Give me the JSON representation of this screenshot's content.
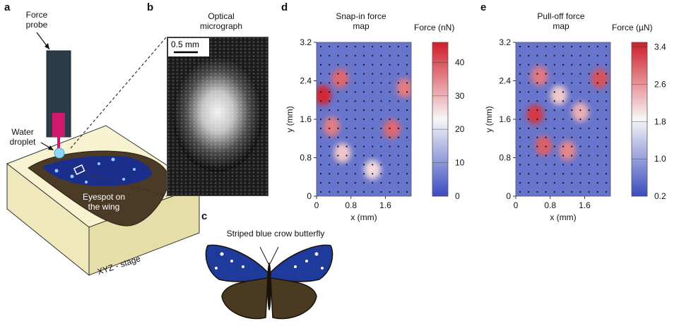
{
  "panels": {
    "a": {
      "letter": "a",
      "force_probe": [
        "Force",
        "probe"
      ],
      "water_droplet": [
        "Water",
        "droplet"
      ],
      "eyespot": [
        "Eyespot on",
        "the wing"
      ],
      "stage": "XYZ - stage"
    },
    "b": {
      "letter": "b",
      "title": [
        "Optical",
        "micrograph"
      ],
      "scalebar": "0.5 mm"
    },
    "c": {
      "letter": "c",
      "title": "Striped blue crow butterfly"
    },
    "d": {
      "letter": "d",
      "title": [
        "Snap-in force",
        "map"
      ],
      "colorbar_label": "Force (nN)",
      "colorbar_ticks": [
        "40",
        "30",
        "20",
        "10",
        "0"
      ],
      "colorbar_range": [
        0,
        46
      ]
    },
    "e": {
      "letter": "e",
      "title": [
        "Pull-off force",
        "map"
      ],
      "colorbar_label": "Force (µN)",
      "colorbar_ticks": [
        "3.4",
        "2.6",
        "1.8",
        "1.0",
        "0.2"
      ],
      "colorbar_range": [
        0.2,
        3.5
      ]
    }
  },
  "colors": {
    "low": "#3b4cc0",
    "mid": "#f7f7f7",
    "high": "#d01c2a"
  },
  "chart_data": [
    {
      "type": "heatmap",
      "title": "Snap-in force map",
      "xlabel": "x (mm)",
      "ylabel": "y (mm)",
      "xticks": [
        "0",
        "0.8",
        "1.6"
      ],
      "yticks": [
        "0",
        "0.8",
        "1.6",
        "2.4",
        "3.2"
      ],
      "xlim": [
        0,
        2.2
      ],
      "ylim": [
        0,
        3.2
      ],
      "unit": "nN",
      "hotspots": [
        {
          "x": 0.15,
          "y": 2.1,
          "value": 45
        },
        {
          "x": 0.55,
          "y": 2.45,
          "value": 38
        },
        {
          "x": 0.35,
          "y": 1.45,
          "value": 36
        },
        {
          "x": 1.75,
          "y": 1.4,
          "value": 38
        },
        {
          "x": 2.05,
          "y": 2.25,
          "value": 36
        },
        {
          "x": 0.6,
          "y": 0.9,
          "value": 28
        },
        {
          "x": 1.3,
          "y": 0.55,
          "value": 26
        }
      ]
    },
    {
      "type": "heatmap",
      "title": "Pull-off force map",
      "xlabel": "x (mm)",
      "ylabel": "y (mm)",
      "xticks": [
        "0",
        "0.8",
        "1.6"
      ],
      "yticks": [
        "0",
        "0.8",
        "1.6",
        "2.4",
        "3.2"
      ],
      "xlim": [
        0,
        2.2
      ],
      "ylim": [
        0,
        3.2
      ],
      "unit": "µN",
      "hotspots": [
        {
          "x": 0.45,
          "y": 1.7,
          "value": 3.3
        },
        {
          "x": 0.55,
          "y": 2.5,
          "value": 2.8
        },
        {
          "x": 1.95,
          "y": 2.45,
          "value": 3.1
        },
        {
          "x": 0.65,
          "y": 1.05,
          "value": 3.0
        },
        {
          "x": 1.2,
          "y": 0.95,
          "value": 2.7
        },
        {
          "x": 1.5,
          "y": 1.75,
          "value": 2.4
        },
        {
          "x": 1.0,
          "y": 2.1,
          "value": 2.2
        }
      ]
    }
  ]
}
